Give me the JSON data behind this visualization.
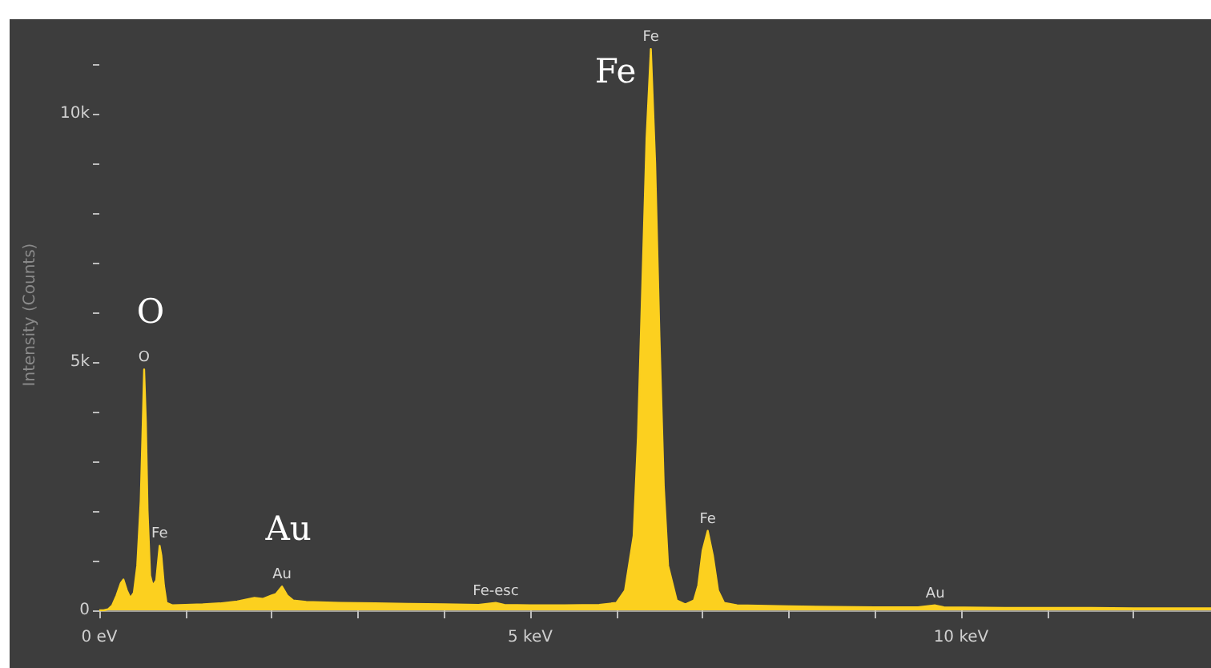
{
  "chart_data": {
    "type": "area",
    "ylabel": "Intensity (Counts)",
    "x": [
      0.0,
      0.05,
      0.1,
      0.15,
      0.2,
      0.25,
      0.28,
      0.32,
      0.36,
      0.4,
      0.44,
      0.48,
      0.5,
      0.52,
      0.54,
      0.56,
      0.59,
      0.62,
      0.66,
      0.7,
      0.72,
      0.75,
      0.78,
      0.85,
      1.0,
      1.2,
      1.4,
      1.6,
      1.8,
      1.9,
      2.0,
      2.05,
      2.12,
      2.18,
      2.25,
      2.4,
      2.8,
      3.2,
      3.6,
      4.0,
      4.4,
      4.6,
      4.7,
      5.0,
      5.4,
      5.8,
      6.0,
      6.1,
      6.2,
      6.25,
      6.3,
      6.35,
      6.4,
      6.45,
      6.5,
      6.55,
      6.6,
      6.7,
      6.8,
      6.9,
      6.95,
      7.0,
      7.06,
      7.12,
      7.18,
      7.25,
      7.4,
      8.0,
      8.5,
      9.0,
      9.5,
      9.7,
      9.8,
      10.5,
      11.5,
      12.0,
      12.9
    ],
    "series": [
      {
        "color": "#fcd01f",
        "values": [
          0,
          0,
          20,
          100,
          300,
          550,
          620,
          400,
          250,
          350,
          900,
          2200,
          3500,
          4850,
          3800,
          2000,
          700,
          500,
          600,
          1300,
          1100,
          500,
          150,
          100,
          110,
          120,
          140,
          180,
          250,
          230,
          300,
          330,
          480,
          300,
          200,
          170,
          150,
          140,
          130,
          120,
          110,
          150,
          110,
          100,
          100,
          110,
          150,
          400,
          1500,
          3500,
          6500,
          9500,
          11300,
          9000,
          5500,
          2500,
          900,
          200,
          120,
          200,
          500,
          1200,
          1600,
          1100,
          400,
          150,
          100,
          80,
          70,
          60,
          60,
          100,
          60,
          50,
          50,
          40,
          40
        ]
      }
    ],
    "xlim": [
      0,
      12.9
    ],
    "xticks": [
      {
        "value": 0,
        "label": "0 eV"
      },
      {
        "value": 1,
        "label": null
      },
      {
        "value": 2,
        "label": null
      },
      {
        "value": 3,
        "label": null
      },
      {
        "value": 4,
        "label": null
      },
      {
        "value": 5,
        "label": "5 keV"
      },
      {
        "value": 6,
        "label": null
      },
      {
        "value": 7,
        "label": null
      },
      {
        "value": 8,
        "label": null
      },
      {
        "value": 9,
        "label": null
      },
      {
        "value": 10,
        "label": "10 keV"
      },
      {
        "value": 11,
        "label": null
      },
      {
        "value": 12,
        "label": null
      }
    ],
    "ylim": [
      0,
      11900
    ],
    "yticks": [
      {
        "value": 0,
        "label": "0"
      },
      {
        "value": 1000,
        "label": null
      },
      {
        "value": 2000,
        "label": null
      },
      {
        "value": 3000,
        "label": null
      },
      {
        "value": 4000,
        "label": null
      },
      {
        "value": 5000,
        "label": "5k"
      },
      {
        "value": 6000,
        "label": null
      },
      {
        "value": 7000,
        "label": null
      },
      {
        "value": 8000,
        "label": null
      },
      {
        "value": 9000,
        "label": null
      },
      {
        "value": 10000,
        "label": "10k"
      },
      {
        "value": 11000,
        "label": null
      }
    ],
    "grid": false,
    "annotations": [
      {
        "text": "O",
        "x": 0.52,
        "y": 4850
      },
      {
        "text": "Au",
        "x": 2.12,
        "y": 480
      },
      {
        "text": "Fe",
        "x": 6.4,
        "y": 11300
      },
      {
        "text": "O",
        "x": 0.52,
        "y": 4850
      },
      {
        "text": "Fe",
        "x": 0.7,
        "y": 1300
      },
      {
        "text": "Au",
        "x": 2.12,
        "y": 480
      },
      {
        "text": "Fe-esc",
        "x": 4.6,
        "y": 150
      },
      {
        "text": "Fe",
        "x": 6.4,
        "y": 11300
      },
      {
        "text": "Fe",
        "x": 7.06,
        "y": 1600
      },
      {
        "text": "Au",
        "x": 9.7,
        "y": 100
      }
    ]
  }
}
